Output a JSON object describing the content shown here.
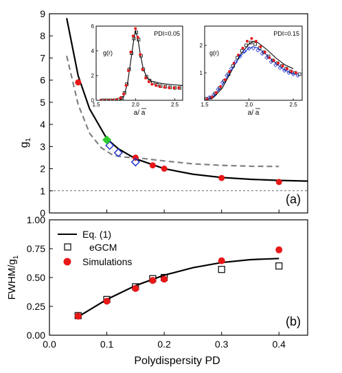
{
  "chart_data": [
    {
      "type": "scatter",
      "panel_label": "(a)",
      "ylabel": "g",
      "ylabel_sub": "1",
      "ylim": [
        0,
        9
      ],
      "xlim": [
        0.0,
        0.45
      ],
      "y_ticks": [
        "0",
        "1",
        "2",
        "3",
        "4",
        "5",
        "6",
        "7",
        "8",
        "9"
      ],
      "reference_line_y": 1,
      "series": [
        {
          "kind": "curve",
          "color": "#000000",
          "x": [
            0.03,
            0.05,
            0.07,
            0.1,
            0.12,
            0.15,
            0.2,
            0.25,
            0.3,
            0.35,
            0.4,
            0.45
          ],
          "y": [
            8.8,
            6.2,
            4.7,
            3.35,
            2.9,
            2.45,
            2.0,
            1.75,
            1.6,
            1.52,
            1.47,
            1.44
          ]
        },
        {
          "kind": "curve-dashed",
          "color": "#808080",
          "x": [
            0.03,
            0.05,
            0.07,
            0.09,
            0.11,
            0.13,
            0.15,
            0.2,
            0.25,
            0.3,
            0.35,
            0.4
          ],
          "y": [
            7.1,
            4.9,
            3.6,
            2.95,
            2.62,
            2.52,
            2.5,
            2.35,
            2.22,
            2.15,
            2.11,
            2.1
          ]
        },
        {
          "kind": "red-circles",
          "color": "#e81818",
          "x": [
            0.05,
            0.15,
            0.18,
            0.2,
            0.3,
            0.4
          ],
          "y": [
            5.9,
            2.5,
            2.15,
            2.0,
            1.58,
            1.4
          ]
        },
        {
          "kind": "blue-diamonds",
          "color": "#2233cc",
          "x": [
            0.105,
            0.12,
            0.15
          ],
          "y": [
            3.05,
            2.72,
            2.3
          ]
        },
        {
          "kind": "green-diamond",
          "color": "#2ecc2e",
          "x": [
            0.1
          ],
          "y": [
            3.3
          ]
        }
      ]
    },
    {
      "type": "scatter",
      "panel_label": "(b)",
      "xlabel": "Polydispersity PD",
      "ylabel": "FWHM/g",
      "ylabel_sub": "1",
      "xlim": [
        0.0,
        0.45
      ],
      "ylim": [
        0.0,
        1.0
      ],
      "x_ticks": [
        "0.0",
        "0.1",
        "0.2",
        "0.3",
        "0.4"
      ],
      "y_ticks": [
        "0.00",
        "0.25",
        "0.50",
        "0.75",
        "1.00"
      ],
      "legend": [
        {
          "label": "Eq. (1)",
          "symbol": "line"
        },
        {
          "label": "eGCM",
          "symbol": "open-square"
        },
        {
          "label": "Simulations",
          "symbol": "red-circle"
        }
      ],
      "series": [
        {
          "name": "Eq. (1)",
          "kind": "curve",
          "x": [
            0.05,
            0.1,
            0.15,
            0.2,
            0.25,
            0.3,
            0.35,
            0.4
          ],
          "y": [
            0.16,
            0.31,
            0.43,
            0.52,
            0.585,
            0.63,
            0.655,
            0.665
          ]
        },
        {
          "name": "eGCM",
          "kind": "open-square",
          "x": [
            0.05,
            0.1,
            0.15,
            0.18,
            0.2,
            0.3,
            0.4
          ],
          "y": [
            0.17,
            0.31,
            0.42,
            0.49,
            0.5,
            0.57,
            0.6
          ]
        },
        {
          "name": "Simulations",
          "kind": "red-circle",
          "x": [
            0.05,
            0.1,
            0.15,
            0.18,
            0.2,
            0.3,
            0.4
          ],
          "y": [
            0.165,
            0.295,
            0.405,
            0.475,
            0.485,
            0.645,
            0.74
          ]
        }
      ]
    },
    {
      "type": "line",
      "panel": "inset-left",
      "annotation": "PDI=0.05",
      "ylabel": "g(r)",
      "xlabel": "a/ a",
      "xlim": [
        1.5,
        2.6
      ],
      "ylim": [
        0,
        6
      ],
      "x_ticks": [
        "1.5",
        "2.0",
        "2.5"
      ],
      "y_ticks": [
        "0",
        "2",
        "4",
        "6"
      ],
      "series": [
        {
          "kind": "curve",
          "x": [
            1.5,
            1.8,
            1.85,
            1.9,
            1.95,
            1.98,
            2.0,
            2.03,
            2.06,
            2.1,
            2.15,
            2.2,
            2.3,
            2.4,
            2.5,
            2.6
          ],
          "y": [
            0.0,
            0.0,
            0.3,
            1.4,
            3.6,
            5.0,
            5.6,
            5.0,
            3.8,
            2.5,
            1.8,
            1.55,
            1.4,
            1.3,
            1.25,
            1.2
          ]
        },
        {
          "kind": "open-square",
          "x": [
            1.58,
            1.63,
            1.68,
            1.73,
            1.78,
            1.83,
            1.86,
            1.89,
            1.92,
            1.95,
            1.98,
            2.01,
            2.04,
            2.07,
            2.1,
            2.14,
            2.18,
            2.22,
            2.27,
            2.32,
            2.38,
            2.44,
            2.5,
            2.56
          ],
          "y": [
            0.0,
            0.0,
            0.0,
            0.0,
            0.05,
            0.2,
            0.6,
            1.3,
            2.5,
            3.8,
            5.0,
            5.5,
            4.9,
            3.6,
            2.5,
            1.9,
            1.6,
            1.4,
            1.25,
            1.15,
            1.1,
            1.05,
            1.0,
            1.0
          ]
        },
        {
          "kind": "red-circle",
          "x": [
            1.56,
            1.61,
            1.66,
            1.71,
            1.76,
            1.81,
            1.85,
            1.88,
            1.91,
            1.94,
            1.97,
            2.0,
            2.03,
            2.06,
            2.09,
            2.13,
            2.17,
            2.21,
            2.26,
            2.31,
            2.37,
            2.43,
            2.49,
            2.55
          ],
          "y": [
            0.0,
            0.0,
            0.0,
            0.0,
            0.05,
            0.2,
            0.5,
            1.2,
            2.4,
            3.9,
            5.2,
            5.8,
            5.1,
            3.7,
            2.5,
            1.8,
            1.5,
            1.3,
            1.2,
            1.1,
            1.05,
            1.0,
            1.0,
            1.0
          ]
        }
      ]
    },
    {
      "type": "line",
      "panel": "inset-right",
      "annotation": "PDI=0.15",
      "ylabel": "g(r)",
      "xlabel": "a/ a",
      "xlim": [
        1.5,
        2.6
      ],
      "ylim": [
        0,
        2.7
      ],
      "x_ticks": [
        "1.5",
        "2.0",
        "2.5"
      ],
      "y_ticks": [
        "1",
        "2"
      ],
      "series": [
        {
          "kind": "curve",
          "x": [
            1.5,
            1.6,
            1.7,
            1.8,
            1.9,
            2.0,
            2.05,
            2.1,
            2.2,
            2.3,
            2.4,
            2.5
          ],
          "y": [
            0.0,
            0.1,
            0.45,
            1.05,
            1.65,
            2.05,
            2.15,
            2.1,
            1.85,
            1.55,
            1.3,
            1.15
          ]
        },
        {
          "kind": "blue-curve",
          "x": [
            1.5,
            1.6,
            1.7,
            1.8,
            1.9,
            2.0,
            2.05,
            2.1,
            2.2,
            2.3,
            2.4,
            2.5
          ],
          "y": [
            0.0,
            0.15,
            0.55,
            1.1,
            1.6,
            1.9,
            1.95,
            1.9,
            1.65,
            1.35,
            1.1,
            0.95
          ]
        },
        {
          "kind": "open-square",
          "x": [
            1.52,
            1.57,
            1.62,
            1.67,
            1.72,
            1.77,
            1.82,
            1.87,
            1.92,
            1.97,
            2.02,
            2.07,
            2.12,
            2.17,
            2.22,
            2.27,
            2.32,
            2.37,
            2.42,
            2.47,
            2.52,
            2.57
          ],
          "y": [
            0.05,
            0.1,
            0.25,
            0.45,
            0.7,
            0.95,
            1.25,
            1.55,
            1.8,
            2.0,
            2.1,
            2.05,
            1.9,
            1.75,
            1.6,
            1.45,
            1.35,
            1.25,
            1.15,
            1.05,
            1.0,
            0.95
          ]
        },
        {
          "kind": "red-circle",
          "x": [
            1.53,
            1.58,
            1.63,
            1.68,
            1.73,
            1.78,
            1.83,
            1.88,
            1.93,
            1.98,
            2.03,
            2.08,
            2.13,
            2.18,
            2.23,
            2.28,
            2.33,
            2.38,
            2.43,
            2.48,
            2.53
          ],
          "y": [
            0.05,
            0.12,
            0.28,
            0.5,
            0.75,
            1.05,
            1.35,
            1.65,
            1.9,
            2.15,
            2.25,
            2.15,
            1.95,
            1.75,
            1.55,
            1.45,
            1.35,
            1.25,
            1.15,
            1.05,
            1.0
          ]
        },
        {
          "kind": "blue-diamond",
          "x": [
            1.55,
            1.6,
            1.65,
            1.7,
            1.75,
            1.8,
            1.85,
            1.9,
            1.95,
            2.0,
            2.05,
            2.1,
            2.15,
            2.2,
            2.25,
            2.3,
            2.35,
            2.4,
            2.45,
            2.5,
            2.55
          ],
          "y": [
            0.1,
            0.2,
            0.4,
            0.65,
            0.9,
            1.15,
            1.4,
            1.6,
            1.78,
            1.88,
            1.9,
            1.82,
            1.7,
            1.55,
            1.4,
            1.28,
            1.18,
            1.08,
            1.0,
            0.95,
            0.9
          ]
        }
      ]
    }
  ]
}
